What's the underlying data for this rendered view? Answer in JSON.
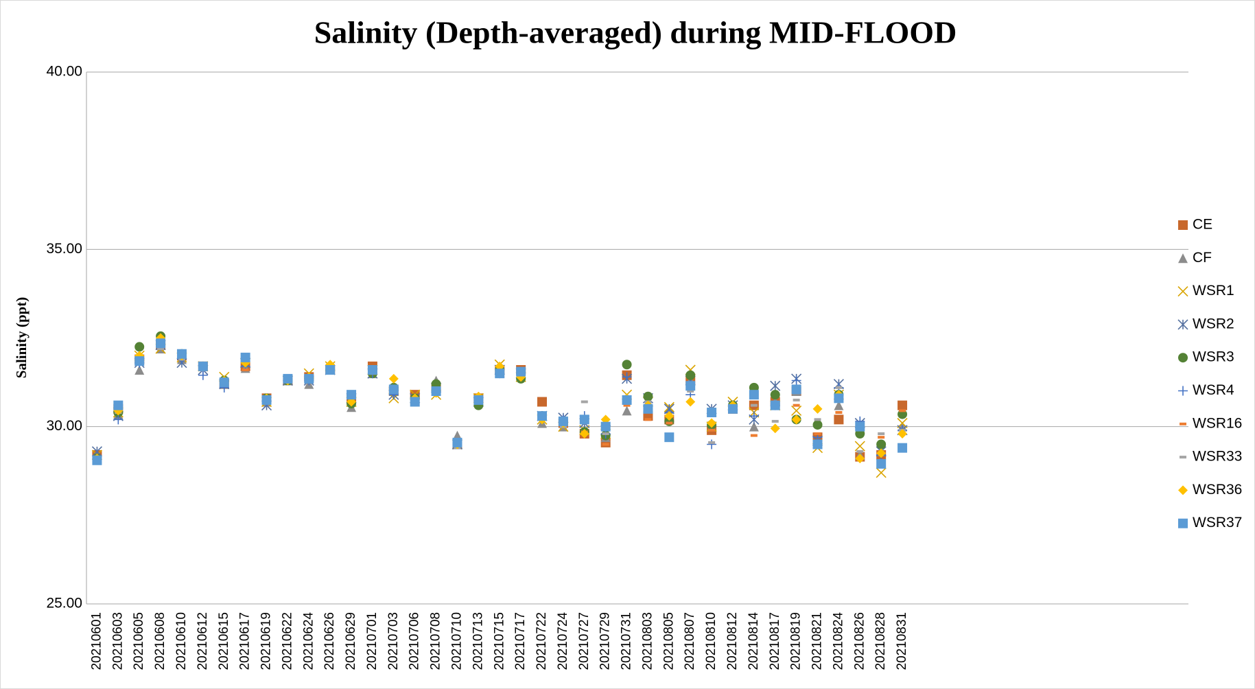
{
  "chart_data": {
    "type": "scatter",
    "title": "Salinity (Depth-averaged) during MID-FLOOD",
    "y_label": "Salinity (ppt)",
    "categories": [
      "20210601",
      "20210603",
      "20210605",
      "20210608",
      "20210610",
      "20210612",
      "20210615",
      "20210617",
      "20210619",
      "20210622",
      "20210624",
      "20210626",
      "20210629",
      "20210701",
      "20210703",
      "20210706",
      "20210708",
      "20210710",
      "20210713",
      "20210715",
      "20210717",
      "20210722",
      "20210724",
      "20210727",
      "20210729",
      "20210731",
      "20210803",
      "20210805",
      "20210807",
      "20210810",
      "20210812",
      "20210814",
      "20210817",
      "20210819",
      "20210821",
      "20210824",
      "20210826",
      "20210828",
      "20210831",
      null,
      null,
      null,
      null,
      null,
      null,
      null,
      null,
      null,
      null,
      null,
      null,
      null
    ],
    "ylim": [
      25,
      40
    ],
    "yticks": [
      {
        "value": 25,
        "label": "25.00"
      },
      {
        "value": 30,
        "label": "30.00"
      },
      {
        "value": 35,
        "label": "35.00"
      },
      {
        "value": 40,
        "label": "40.00"
      }
    ],
    "grid": true,
    "legend": "right",
    "series": [
      {
        "name": "CE",
        "color": "#c8682c",
        "marker": "square",
        "values": [
          29.2,
          30.5,
          31.9,
          32.3,
          32.0,
          31.7,
          31.2,
          31.7,
          30.8,
          31.3,
          31.4,
          31.6,
          30.8,
          31.7,
          31.0,
          30.9,
          31.1,
          29.5,
          30.8,
          31.6,
          31.6,
          30.7,
          30.1,
          29.8,
          29.55,
          31.45,
          30.3,
          30.2,
          31.3,
          29.9,
          30.5,
          30.6,
          30.7,
          31.0,
          29.7,
          30.2,
          29.15,
          29.2,
          30.6,
          null,
          null,
          null,
          null,
          null,
          null,
          null,
          null,
          null,
          null,
          null,
          null,
          null
        ]
      },
      {
        "name": "CF",
        "color": "#8c8c8c",
        "marker": "triangle",
        "values": [
          29.1,
          30.35,
          31.6,
          32.2,
          31.9,
          31.7,
          31.2,
          31.65,
          30.7,
          31.3,
          31.2,
          31.6,
          30.55,
          31.5,
          31.0,
          30.8,
          31.3,
          29.75,
          30.7,
          31.6,
          31.5,
          30.1,
          30.0,
          29.9,
          29.7,
          30.45,
          30.7,
          30.5,
          31.3,
          30.0,
          30.6,
          30.0,
          30.7,
          31.0,
          29.5,
          30.6,
          29.2,
          29.3,
          30.0,
          null,
          null,
          null,
          null,
          null,
          null,
          null,
          null,
          null,
          null,
          null,
          null,
          null
        ]
      },
      {
        "name": "WSR1",
        "color": "#d9a400",
        "marker": "x",
        "values": [
          29.2,
          30.4,
          32.0,
          32.2,
          31.95,
          31.7,
          31.4,
          31.8,
          30.7,
          31.3,
          31.5,
          31.7,
          30.7,
          31.6,
          30.8,
          30.9,
          30.9,
          29.5,
          30.8,
          31.75,
          31.4,
          30.2,
          30.0,
          29.9,
          29.8,
          30.9,
          30.7,
          30.55,
          31.6,
          30.0,
          30.7,
          30.4,
          30.6,
          30.45,
          29.4,
          30.9,
          29.45,
          28.7,
          30.1,
          null,
          null,
          null,
          null,
          null,
          null,
          null,
          null,
          null,
          null,
          null,
          null,
          null
        ]
      },
      {
        "name": "WSR2",
        "color": "#5470a0",
        "marker": "asterisk",
        "values": [
          29.3,
          30.3,
          31.8,
          32.3,
          31.8,
          31.6,
          31.2,
          31.8,
          30.6,
          31.3,
          31.3,
          31.6,
          30.8,
          31.5,
          30.9,
          30.8,
          31.1,
          29.5,
          30.7,
          31.6,
          31.5,
          30.3,
          30.25,
          30.1,
          29.9,
          31.35,
          30.8,
          30.5,
          31.3,
          30.5,
          30.6,
          30.2,
          31.15,
          31.35,
          29.6,
          31.2,
          30.1,
          29.3,
          29.9,
          null,
          null,
          null,
          null,
          null,
          null,
          null,
          null,
          null,
          null,
          null,
          null,
          null
        ]
      },
      {
        "name": "WSR3",
        "color": "#548235",
        "marker": "circle",
        "values": [
          29.1,
          30.4,
          32.25,
          32.55,
          32.05,
          31.7,
          31.3,
          31.9,
          30.8,
          31.3,
          31.35,
          31.6,
          30.65,
          31.5,
          31.1,
          30.8,
          31.2,
          29.5,
          30.6,
          31.6,
          31.35,
          30.3,
          30.1,
          29.85,
          29.75,
          31.75,
          30.85,
          30.15,
          31.45,
          30.05,
          30.6,
          31.1,
          30.9,
          30.2,
          30.05,
          30.9,
          29.8,
          29.5,
          30.35,
          null,
          null,
          null,
          null,
          null,
          null,
          null,
          null,
          null,
          null,
          null,
          null,
          null
        ]
      },
      {
        "name": "WSR4",
        "color": "#4472c4",
        "marker": "plus",
        "values": [
          29.1,
          30.2,
          31.8,
          32.3,
          31.9,
          31.45,
          31.1,
          31.7,
          30.7,
          31.3,
          31.3,
          31.6,
          30.8,
          31.5,
          30.9,
          30.8,
          31.0,
          29.5,
          30.8,
          31.5,
          31.5,
          30.3,
          30.2,
          30.3,
          29.8,
          31.4,
          30.6,
          30.4,
          30.9,
          29.5,
          30.6,
          30.3,
          30.6,
          31.3,
          29.7,
          31.1,
          30.15,
          29.2,
          29.9,
          null,
          null,
          null,
          null,
          null,
          null,
          null,
          null,
          null,
          null,
          null,
          null,
          null
        ]
      },
      {
        "name": "WSR16",
        "color": "#ed7d31",
        "marker": "dash",
        "values": [
          29.15,
          30.4,
          31.9,
          32.2,
          32.0,
          31.6,
          31.2,
          31.6,
          30.75,
          31.3,
          31.3,
          31.6,
          30.8,
          31.5,
          31.0,
          30.8,
          31.0,
          29.5,
          30.7,
          31.5,
          31.6,
          30.2,
          30.1,
          29.85,
          29.5,
          30.6,
          30.2,
          30.1,
          31.1,
          29.9,
          30.5,
          29.75,
          30.6,
          30.6,
          29.8,
          30.4,
          29.1,
          29.7,
          30.45,
          null,
          null,
          null,
          null,
          null,
          null,
          null,
          null,
          null,
          null,
          null,
          null,
          null
        ]
      },
      {
        "name": "WSR33",
        "color": "#a5a5a5",
        "marker": "dash",
        "values": [
          29.1,
          30.4,
          31.8,
          32.2,
          31.9,
          31.6,
          31.2,
          31.8,
          30.7,
          31.3,
          31.3,
          31.6,
          30.8,
          31.5,
          31.0,
          30.8,
          31.0,
          29.4,
          30.7,
          31.5,
          31.6,
          30.3,
          30.0,
          30.7,
          29.8,
          30.8,
          30.7,
          30.3,
          31.0,
          29.55,
          30.5,
          30.6,
          30.15,
          30.75,
          30.2,
          31.1,
          29.3,
          29.8,
          29.9,
          null,
          null,
          null,
          null,
          null,
          null,
          null,
          null,
          null,
          null,
          null,
          null,
          null
        ]
      },
      {
        "name": "WSR36",
        "color": "#ffc000",
        "marker": "diamond",
        "values": [
          29.1,
          30.45,
          32.0,
          32.5,
          32.0,
          31.7,
          31.3,
          31.8,
          30.8,
          31.3,
          31.4,
          31.75,
          30.7,
          31.6,
          31.35,
          30.8,
          30.95,
          29.5,
          30.85,
          31.7,
          31.4,
          30.2,
          30.1,
          29.8,
          30.2,
          30.8,
          30.6,
          30.3,
          30.7,
          30.1,
          30.6,
          30.9,
          29.95,
          30.2,
          30.5,
          30.9,
          29.1,
          29.25,
          29.8,
          null,
          null,
          null,
          null,
          null,
          null,
          null,
          null,
          null,
          null,
          null,
          null,
          null
        ]
      },
      {
        "name": "WSR37",
        "color": "#5b9bd5",
        "marker": "square",
        "values": [
          29.05,
          30.6,
          31.85,
          32.35,
          32.05,
          31.7,
          31.25,
          31.95,
          30.75,
          31.35,
          31.35,
          31.6,
          30.9,
          31.6,
          31.05,
          30.7,
          31.0,
          29.55,
          30.75,
          31.5,
          31.55,
          30.3,
          30.15,
          30.2,
          30.0,
          30.75,
          30.5,
          29.7,
          31.15,
          30.4,
          30.5,
          30.9,
          30.6,
          31.05,
          29.5,
          30.8,
          30.0,
          28.95,
          29.4,
          null,
          null,
          null,
          null,
          null,
          null,
          null,
          null,
          null,
          null,
          null,
          null,
          null
        ]
      }
    ]
  }
}
